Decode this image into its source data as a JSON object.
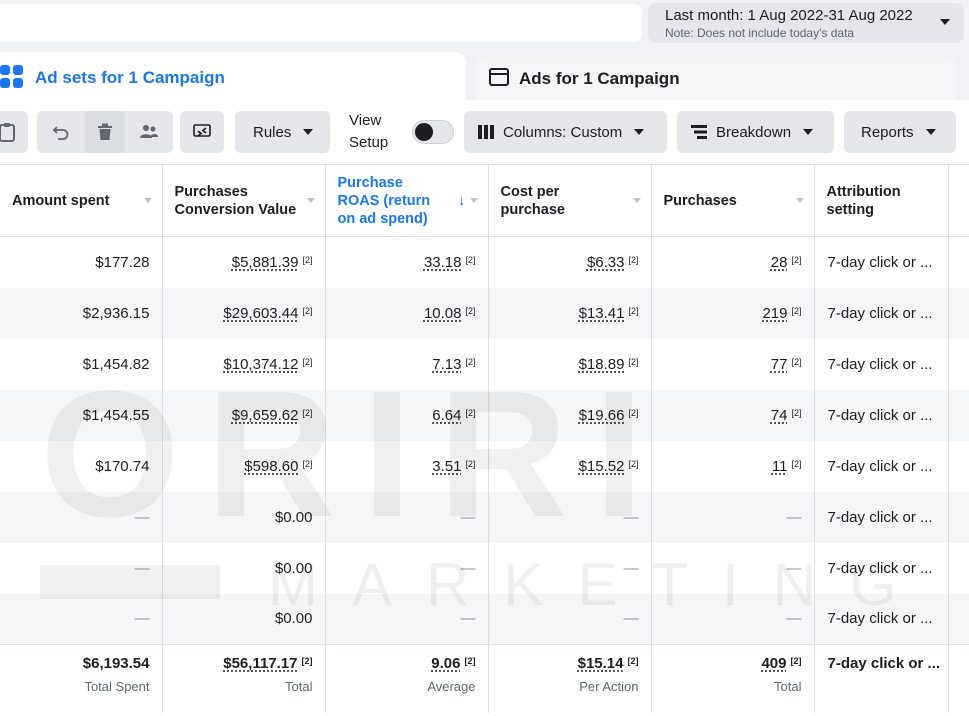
{
  "date_range": {
    "label": "Last month: 1 Aug 2022-31 Aug 2022",
    "note": "Note: Does not include today's data"
  },
  "tabs": [
    {
      "label": "Ad sets for 1 Campaign",
      "icon": "grid-icon"
    },
    {
      "label": "Ads for 1 Campaign",
      "icon": "ad-frame-icon"
    }
  ],
  "toolbar": {
    "rules_label": "Rules",
    "view_setup_line1": "View",
    "view_setup_line2": "Setup",
    "columns_label": "Columns: Custom",
    "breakdown_label": "Breakdown",
    "reports_label": "Reports"
  },
  "table": {
    "headers": [
      "Amount spent",
      "Purchases Conversion Value",
      "Purchase ROAS (return on ad spend)",
      "Cost per purchase",
      "Purchases",
      "Attribution setting"
    ],
    "footnote": "[2]",
    "rows": [
      {
        "amount_spent": "$177.28",
        "conversion_value": "$5,881.39",
        "roas": "33.18",
        "cost_per_purchase": "$6.33",
        "purchases": "28",
        "attribution": "7-day click or ..."
      },
      {
        "amount_spent": "$2,936.15",
        "conversion_value": "$29,603.44",
        "roas": "10.08",
        "cost_per_purchase": "$13.41",
        "purchases": "219",
        "attribution": "7-day click or ..."
      },
      {
        "amount_spent": "$1,454.82",
        "conversion_value": "$10,374.12",
        "roas": "7.13",
        "cost_per_purchase": "$18.89",
        "purchases": "77",
        "attribution": "7-day click or ..."
      },
      {
        "amount_spent": "$1,454.55",
        "conversion_value": "$9,659.62",
        "roas": "6.64",
        "cost_per_purchase": "$19.66",
        "purchases": "74",
        "attribution": "7-day click or ..."
      },
      {
        "amount_spent": "$170.74",
        "conversion_value": "$598.60",
        "roas": "3.51",
        "cost_per_purchase": "$15.52",
        "purchases": "11",
        "attribution": "7-day click or ..."
      },
      {
        "amount_spent": "—",
        "conversion_value": "$0.00",
        "roas": "—",
        "cost_per_purchase": "—",
        "purchases": "—",
        "attribution": "7-day click or ..."
      },
      {
        "amount_spent": "—",
        "conversion_value": "$0.00",
        "roas": "—",
        "cost_per_purchase": "—",
        "purchases": "—",
        "attribution": "7-day click or ..."
      },
      {
        "amount_spent": "—",
        "conversion_value": "$0.00",
        "roas": "—",
        "cost_per_purchase": "—",
        "purchases": "—",
        "attribution": "7-day click or ..."
      }
    ],
    "totals": {
      "amount_spent": "$6,193.54",
      "amount_spent_label": "Total Spent",
      "conversion_value": "$56,117.17",
      "conversion_value_label": "Total",
      "roas": "9.06",
      "roas_label": "Average",
      "cost_per_purchase": "$15.14",
      "cost_per_purchase_label": "Per Action",
      "purchases": "409",
      "purchases_label": "Total",
      "attribution": "7-day click or ..."
    }
  },
  "watermark": {
    "main": "ORIRI",
    "sub": "MARKETING"
  },
  "colors": {
    "accent": "#1877f2",
    "button_bg": "#e4e6eb",
    "page_bg": "#f0f2f5"
  }
}
